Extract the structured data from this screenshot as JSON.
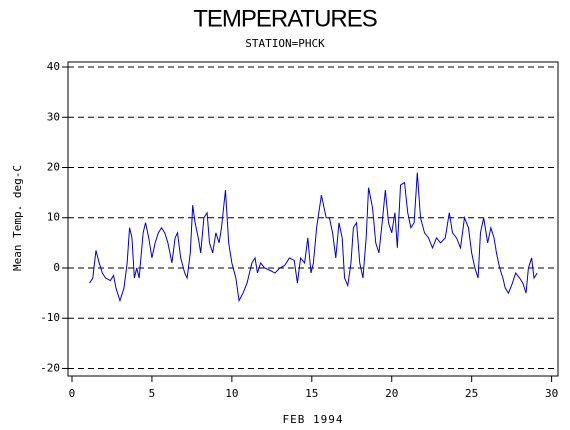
{
  "chart_data": {
    "type": "line",
    "title": "TEMPERATURES",
    "subtitle": "STATION=PHCK",
    "x_label": "FEB 1994",
    "y_label": "Mean Temp. deg-C",
    "color": "#0000cc",
    "grid": true,
    "xlim": [
      -0.25,
      30.4
    ],
    "xticks": [
      0,
      5,
      10,
      15,
      20,
      25,
      30
    ],
    "ylim": [
      -21.5,
      41
    ],
    "yticks": [
      -20,
      -10,
      0,
      10,
      20,
      30,
      40
    ],
    "x": [
      1.1,
      1.3,
      1.5,
      1.7,
      1.9,
      2.1,
      2.4,
      2.6,
      2.75,
      3.0,
      3.25,
      3.45,
      3.6,
      3.75,
      3.9,
      4.05,
      4.2,
      4.45,
      4.6,
      4.8,
      5.0,
      5.2,
      5.4,
      5.6,
      5.8,
      6.0,
      6.25,
      6.45,
      6.6,
      6.8,
      7.05,
      7.2,
      7.4,
      7.55,
      7.7,
      7.9,
      8.05,
      8.25,
      8.45,
      8.6,
      8.8,
      9.0,
      9.2,
      9.35,
      9.6,
      9.8,
      10.0,
      10.25,
      10.45,
      10.7,
      10.95,
      11.25,
      11.45,
      11.6,
      11.8,
      12.05,
      12.4,
      12.7,
      13.0,
      13.3,
      13.6,
      13.9,
      14.1,
      14.3,
      14.55,
      14.75,
      14.95,
      15.1,
      15.3,
      15.6,
      15.9,
      16.1,
      16.3,
      16.5,
      16.7,
      16.9,
      17.05,
      17.25,
      17.45,
      17.6,
      17.8,
      18.0,
      18.2,
      18.4,
      18.55,
      18.8,
      19.0,
      19.2,
      19.4,
      19.6,
      19.8,
      20.0,
      20.2,
      20.35,
      20.55,
      20.8,
      21.0,
      21.2,
      21.4,
      21.6,
      21.8,
      22.05,
      22.3,
      22.55,
      22.8,
      23.05,
      23.35,
      23.6,
      23.8,
      24.05,
      24.3,
      24.55,
      24.8,
      25.0,
      25.2,
      25.4,
      25.55,
      25.75,
      26.0,
      26.2,
      26.4,
      26.55,
      26.75,
      26.95,
      27.1,
      27.3,
      27.55,
      27.75,
      28.0,
      28.2,
      28.4,
      28.55,
      28.75,
      28.9,
      29.1
    ],
    "values": [
      -3,
      -2,
      3.5,
      1,
      -1,
      -2,
      -2.5,
      -1.5,
      -4,
      -6.5,
      -4,
      1,
      8,
      6,
      -2,
      0,
      -2,
      7,
      9,
      6,
      2,
      5,
      7,
      8,
      7,
      5,
      1,
      6,
      7,
      2,
      -1,
      -2,
      3,
      12.5,
      9,
      6,
      3,
      10,
      11,
      5,
      3,
      7,
      5,
      8,
      15.5,
      5,
      1,
      -2,
      -6.5,
      -5,
      -3,
      1,
      2,
      -1,
      1,
      0,
      -0.5,
      -1,
      0,
      0.5,
      2,
      1.5,
      -3,
      2,
      1,
      6,
      -1,
      1,
      8,
      14.5,
      10,
      10,
      7,
      2,
      9,
      6,
      -2,
      -3.5,
      1,
      8,
      9,
      1,
      -2,
      6,
      16,
      12,
      5,
      3,
      9,
      15.5,
      9,
      7,
      11,
      4,
      16.5,
      17,
      11,
      8,
      9,
      19,
      10,
      7,
      6,
      4,
      6,
      5,
      6,
      11,
      7,
      6,
      4,
      10,
      8,
      3,
      0,
      -2,
      7,
      10,
      5,
      8,
      6,
      3,
      0,
      -2,
      -4,
      -5,
      -3,
      -1,
      -2,
      -3,
      -5,
      0,
      2,
      -2,
      -1
    ]
  }
}
